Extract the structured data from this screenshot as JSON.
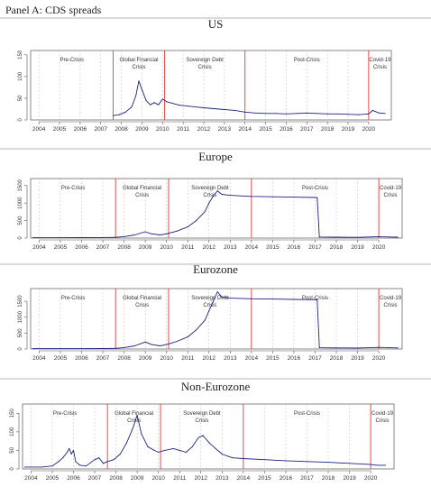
{
  "panel_label": "Panel A: CDS spreads",
  "x_ticks": [
    "2004",
    "2005",
    "2006",
    "2007",
    "2008",
    "2009",
    "2010",
    "2011",
    "2012",
    "2013",
    "2014",
    "2015",
    "2016",
    "2017",
    "2018",
    "2019",
    "2020"
  ],
  "colors": {
    "series": "#1a237e",
    "breaks": "#e53935",
    "grid": "#bdbdbd",
    "divider": "#9e9e9e"
  },
  "chart_data": [
    {
      "type": "line",
      "title": "US",
      "regimes": [
        {
          "label": "Pre-Crisis",
          "lines": [
            "Pre-Crisis"
          ]
        },
        {
          "label": "Global Financial Crisis",
          "lines": [
            "Global Financial",
            "Crisis"
          ]
        },
        {
          "label": "Sovereign Debt Crisis",
          "lines": [
            "Sovereign Debt",
            "Crisis"
          ]
        },
        {
          "label": "Post-Crisis",
          "lines": [
            "Post-Crisis"
          ]
        },
        {
          "label": "Covid-19 Crisis",
          "lines": [
            "Covid-19",
            "Crisis"
          ]
        }
      ],
      "regime_breaks": [
        2007.6,
        2010.1,
        2014.0,
        2020.0
      ],
      "yticks": [
        0,
        50,
        100,
        150
      ],
      "ylim": [
        0,
        160
      ],
      "xlim": [
        2003.6,
        2021.1
      ],
      "x": [
        2007.6,
        2007.9,
        2008.2,
        2008.5,
        2008.7,
        2008.85,
        2009.0,
        2009.2,
        2009.4,
        2009.6,
        2009.8,
        2010.0,
        2010.2,
        2010.5,
        2010.8,
        2011.2,
        2011.6,
        2012.0,
        2012.5,
        2013.0,
        2013.5,
        2014.0,
        2014.5,
        2015.0,
        2015.5,
        2016.0,
        2016.5,
        2017.0,
        2017.5,
        2018.0,
        2018.5,
        2019.0,
        2019.5,
        2020.0,
        2020.2,
        2020.5,
        2020.8
      ],
      "y": [
        10,
        12,
        18,
        30,
        55,
        90,
        70,
        45,
        35,
        40,
        35,
        48,
        42,
        38,
        34,
        32,
        30,
        28,
        26,
        24,
        22,
        18,
        16,
        15,
        15,
        14,
        15,
        16,
        15,
        14,
        14,
        13,
        12,
        14,
        22,
        16,
        15
      ]
    },
    {
      "type": "line",
      "title": "Europe",
      "regimes": [
        {
          "label": "Pre-Crisis",
          "lines": [
            "Pre-Crisis"
          ]
        },
        {
          "label": "Global Financial Crisis",
          "lines": [
            "Global Financial",
            "Crisis"
          ]
        },
        {
          "label": "Sovereign Debt Crisis",
          "lines": [
            "Sovereign Debt",
            "Crisis"
          ]
        },
        {
          "label": "Post-Crisis",
          "lines": [
            "Post-Crisis"
          ]
        },
        {
          "label": "Covid-19 Crisis",
          "lines": [
            "Covid-19",
            "Crisis"
          ]
        }
      ],
      "regime_breaks": [
        2007.6,
        2010.1,
        2014.0,
        2020.0
      ],
      "yticks": [
        0,
        500,
        1000,
        1500
      ],
      "ylim": [
        0,
        1700
      ],
      "xlim": [
        2003.6,
        2021.1
      ],
      "x": [
        2003.7,
        2005.0,
        2006.0,
        2007.0,
        2007.6,
        2008.0,
        2008.5,
        2009.0,
        2009.3,
        2009.7,
        2010.0,
        2010.5,
        2011.0,
        2011.4,
        2011.8,
        2012.0,
        2012.2,
        2012.4,
        2012.6,
        2013.0,
        2014.0,
        2015.0,
        2016.0,
        2017.0,
        2017.1,
        2017.2,
        2018.0,
        2019.0,
        2020.0,
        2020.5,
        2020.9
      ],
      "y": [
        10,
        10,
        12,
        15,
        20,
        40,
        90,
        180,
        120,
        90,
        120,
        200,
        320,
        500,
        750,
        1000,
        1200,
        1350,
        1250,
        1220,
        1190,
        1180,
        1170,
        1160,
        1155,
        30,
        25,
        20,
        40,
        30,
        25
      ]
    },
    {
      "type": "line",
      "title": "Eurozone",
      "regimes": [
        {
          "label": "Pre-Crisis",
          "lines": [
            "Pre-Crisis"
          ]
        },
        {
          "label": "Global Financial Crisis",
          "lines": [
            "Global Financial",
            "Crisis"
          ]
        },
        {
          "label": "Sovereign Debt Crisis",
          "lines": [
            "Sovereign Debt",
            "Crisis"
          ]
        },
        {
          "label": "Post-Crisis",
          "lines": [
            "Post-Crisis"
          ]
        },
        {
          "label": "Covid-19 Crisis",
          "lines": [
            "Covid-19",
            "Crisis"
          ]
        }
      ],
      "regime_breaks": [
        2007.6,
        2010.1,
        2014.0,
        2020.0
      ],
      "yticks": [
        0,
        500,
        1000,
        1500
      ],
      "ylim": [
        0,
        1900
      ],
      "xlim": [
        2003.6,
        2021.1
      ],
      "x": [
        2003.7,
        2005.0,
        2006.0,
        2007.0,
        2007.6,
        2008.0,
        2008.5,
        2009.0,
        2009.3,
        2009.7,
        2010.0,
        2010.5,
        2011.0,
        2011.4,
        2011.8,
        2012.0,
        2012.2,
        2012.4,
        2012.6,
        2013.0,
        2014.0,
        2015.0,
        2016.0,
        2017.0,
        2017.1,
        2017.2,
        2018.0,
        2019.0,
        2020.0,
        2020.5,
        2020.9
      ],
      "y": [
        10,
        10,
        12,
        15,
        20,
        45,
        100,
        220,
        140,
        100,
        140,
        240,
        380,
        600,
        900,
        1200,
        1500,
        1800,
        1640,
        1600,
        1580,
        1570,
        1560,
        1550,
        1545,
        40,
        35,
        30,
        50,
        40,
        35
      ]
    },
    {
      "type": "line",
      "title": "Non-Eurozone",
      "regimes": [
        {
          "label": "Pre-Crisis",
          "lines": [
            "Pre-Crisis"
          ]
        },
        {
          "label": "Global Financial Crisis",
          "lines": [
            "Global Financial",
            "Crisis"
          ]
        },
        {
          "label": "Sovereign Debt Crisis",
          "lines": [
            "Sovereign Debt",
            "Crisis"
          ]
        },
        {
          "label": "Post-Crisis",
          "lines": [
            "Post-Crisis"
          ]
        },
        {
          "label": "Covid-19 Crisis",
          "lines": [
            "Covid-19",
            "Crisis"
          ]
        }
      ],
      "regime_breaks": [
        2007.6,
        2010.1,
        2014.0,
        2020.0
      ],
      "yticks": [
        0,
        50,
        100,
        150
      ],
      "ylim": [
        0,
        175
      ],
      "xlim": [
        2003.6,
        2021.1
      ],
      "x": [
        2003.7,
        2004.5,
        2005.0,
        2005.3,
        2005.5,
        2005.7,
        2005.8,
        2005.9,
        2006.0,
        2006.1,
        2006.3,
        2006.6,
        2007.0,
        2007.2,
        2007.4,
        2007.6,
        2007.9,
        2008.2,
        2008.5,
        2008.8,
        2009.0,
        2009.2,
        2009.5,
        2009.8,
        2010.0,
        2010.3,
        2010.7,
        2011.0,
        2011.3,
        2011.6,
        2011.9,
        2012.1,
        2012.4,
        2012.7,
        2013.0,
        2013.5,
        2014.0,
        2015.0,
        2016.0,
        2017.0,
        2018.0,
        2019.0,
        2020.0,
        2020.3,
        2020.7
      ],
      "y": [
        5,
        5,
        8,
        20,
        30,
        45,
        55,
        40,
        50,
        20,
        10,
        8,
        25,
        30,
        15,
        20,
        25,
        40,
        70,
        110,
        145,
        95,
        60,
        50,
        45,
        50,
        55,
        50,
        45,
        60,
        85,
        90,
        70,
        55,
        40,
        30,
        28,
        25,
        22,
        20,
        18,
        15,
        12,
        10,
        10
      ]
    }
  ]
}
